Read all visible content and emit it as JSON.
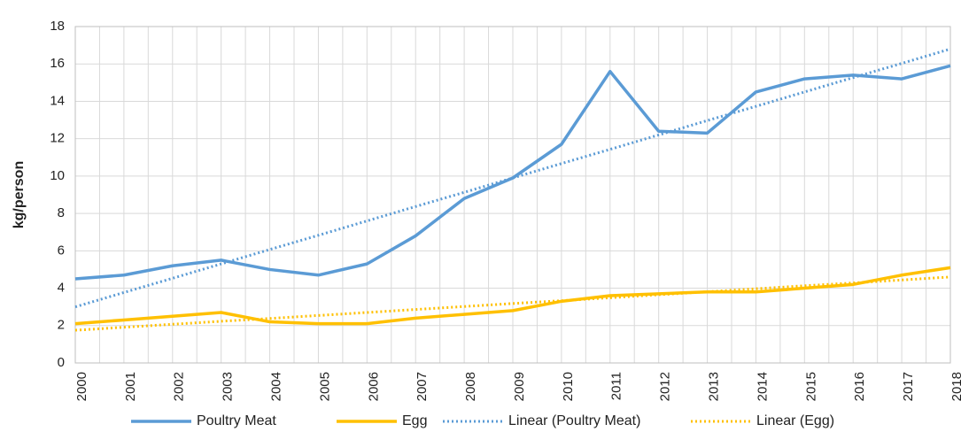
{
  "chart_data": {
    "type": "line",
    "y_label": "kg/person",
    "categories": [
      "2000",
      "2001",
      "2002",
      "2003",
      "2004",
      "2005",
      "2006",
      "2007",
      "2008",
      "2009",
      "2010",
      "2011",
      "2012",
      "2013",
      "2014",
      "2015",
      "2016",
      "2017",
      "2018"
    ],
    "series": [
      {
        "name": "Poultry Meat",
        "color": "#5b9bd5",
        "style": "solid",
        "values": [
          4.5,
          4.7,
          5.2,
          5.5,
          5.0,
          4.7,
          5.3,
          6.8,
          8.8,
          9.9,
          11.7,
          15.6,
          12.4,
          12.3,
          14.5,
          15.2,
          15.4,
          15.2,
          15.9
        ]
      },
      {
        "name": "Egg",
        "color": "#ffc000",
        "style": "solid",
        "values": [
          2.1,
          2.3,
          2.5,
          2.7,
          2.2,
          2.1,
          2.1,
          2.4,
          2.6,
          2.8,
          3.3,
          3.6,
          3.7,
          3.8,
          3.8,
          4.0,
          4.2,
          4.7,
          5.1
        ]
      },
      {
        "name": "Linear (Poultry Meat)",
        "color": "#5b9bd5",
        "style": "dotted",
        "values": [
          3.0,
          3.77,
          4.53,
          5.3,
          6.07,
          6.83,
          7.6,
          8.37,
          9.13,
          9.9,
          10.67,
          11.43,
          12.2,
          12.97,
          13.73,
          14.5,
          15.27,
          16.03,
          16.8
        ]
      },
      {
        "name": "Linear (Egg)",
        "color": "#ffc000",
        "style": "dotted",
        "values": [
          1.75,
          1.91,
          2.07,
          2.23,
          2.38,
          2.54,
          2.7,
          2.86,
          3.02,
          3.18,
          3.33,
          3.49,
          3.65,
          3.81,
          3.97,
          4.13,
          4.28,
          4.44,
          4.6
        ]
      }
    ],
    "ylim": [
      0,
      18
    ],
    "yticks": [
      0,
      2,
      4,
      6,
      8,
      10,
      12,
      14,
      16,
      18
    ],
    "grid": true,
    "legend": "bottom"
  }
}
